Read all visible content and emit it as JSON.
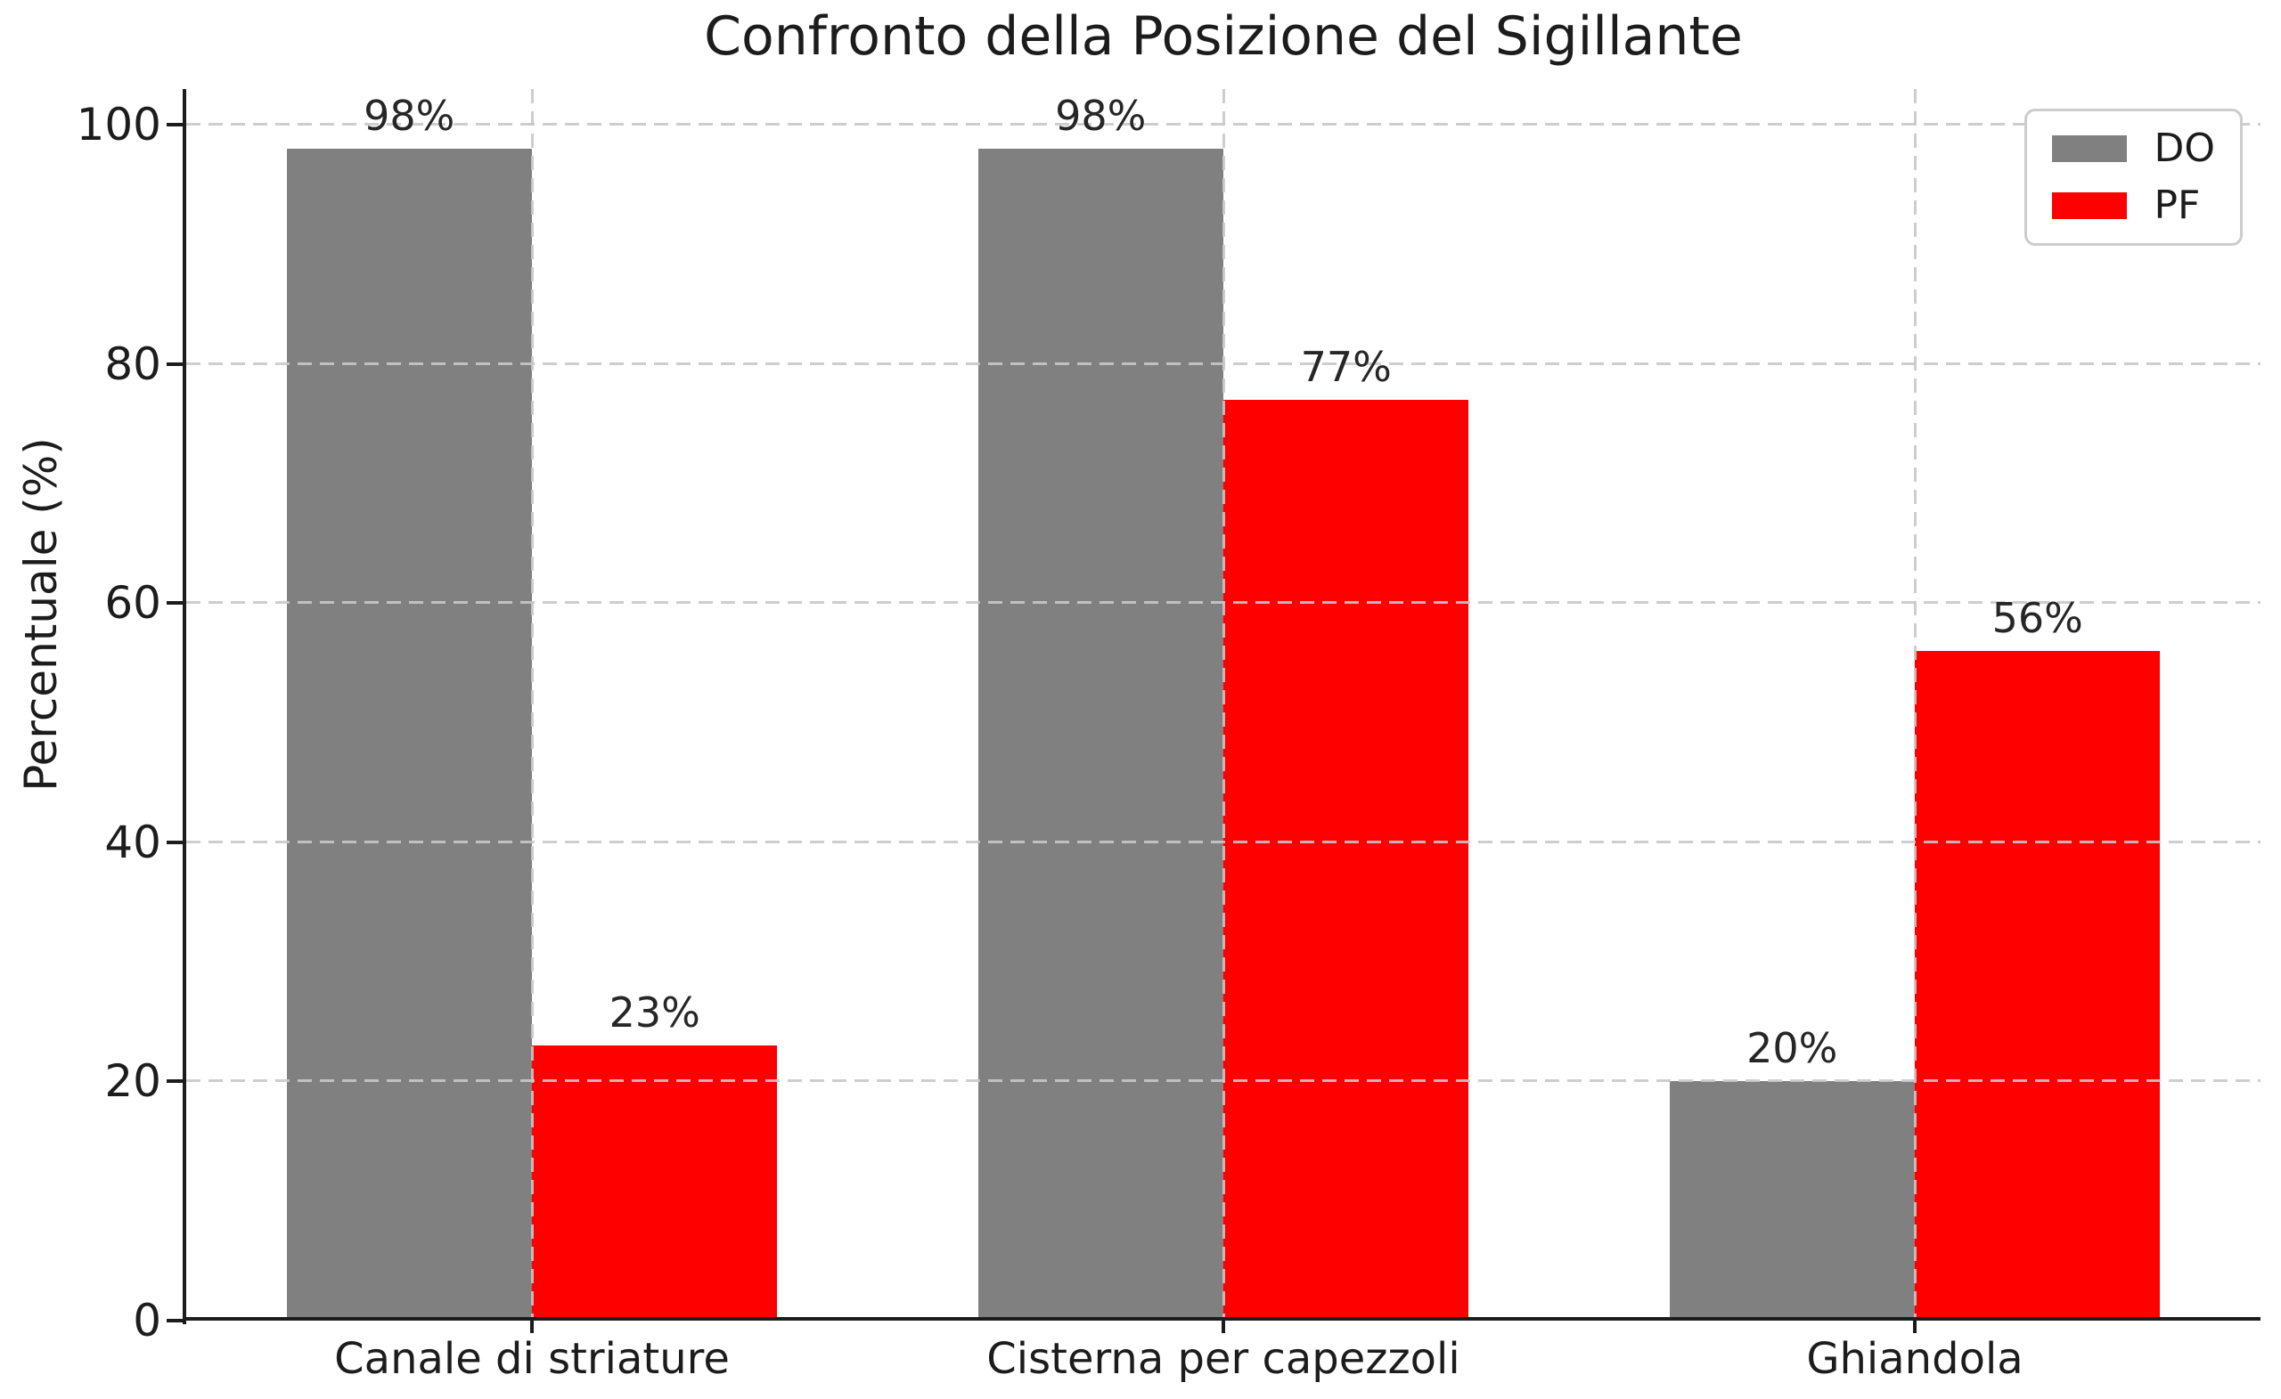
{
  "chart_data": {
    "type": "bar",
    "title": "Confronto della Posizione del Sigillante",
    "ylabel": "Percentuale (%)",
    "xlabel": "",
    "categories": [
      "Canale di striature",
      "Cisterna per capezzoli",
      "Ghiandola"
    ],
    "series": [
      {
        "name": "DO",
        "color": "#808080",
        "values": [
          98,
          98,
          20
        ]
      },
      {
        "name": "PF",
        "color": "#ff0000",
        "values": [
          23,
          77,
          56
        ]
      }
    ],
    "value_labels": [
      [
        "98%",
        "98%",
        "20%"
      ],
      [
        "23%",
        "77%",
        "56%"
      ]
    ],
    "yticks": [
      0,
      20,
      40,
      60,
      80,
      100
    ],
    "ylim": [
      0,
      103
    ],
    "grid": "dashed",
    "grid_color": "#c8c8c8",
    "legend_position": "upper right",
    "legend_labels": [
      "DO",
      "PF"
    ],
    "bar_colors": {
      "DO": "#808080",
      "PF": "#ff0000"
    },
    "text_color": "#1c1c1c",
    "background_color": "#ffffff"
  }
}
